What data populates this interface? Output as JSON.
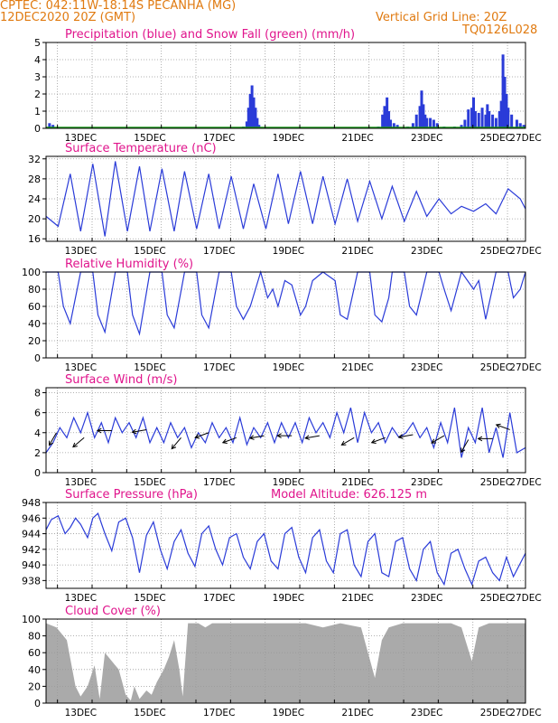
{
  "header": {
    "line1": "CPTEC:   042:11W-18:14S   PECANHA (MG)",
    "line2": "12DEC2020 20Z (GMT)",
    "grid_note": "Vertical Grid Line: 20Z",
    "code": "TQ0126L028"
  },
  "colors": {
    "header": "#e07a10",
    "title": "#e0148c",
    "line": "#2a3bd8",
    "snow": "#1a9a1a",
    "cloud": "#aaaaaa",
    "grid": "#999999"
  },
  "x_ticks": [
    "13DEC",
    "15DEC",
    "17DEC",
    "19DEC",
    "21DEC",
    "23DEC",
    "25DEC",
    "27DEC"
  ],
  "chart_data": [
    {
      "id": "precip",
      "type": "bar",
      "title": "Precipitation (blue) and Snow Fall (green) (mm/h)",
      "ylim": [
        0,
        5
      ],
      "yticks": [
        "0",
        "1",
        "2",
        "3",
        "4",
        "5"
      ],
      "ytick_values": [
        0,
        1,
        2,
        3,
        4,
        5
      ],
      "series": [
        {
          "name": "Precipitation",
          "color": "#2a3bd8",
          "points": [
            [
              0.1,
              0.3
            ],
            [
              0.2,
              0.2
            ],
            [
              1.7,
              0.05
            ],
            [
              2.9,
              0.05
            ],
            [
              3.5,
              0.05
            ],
            [
              4.55,
              0.05
            ],
            [
              5.7,
              0.1
            ],
            [
              5.8,
              0.4
            ],
            [
              5.85,
              1.2
            ],
            [
              5.9,
              2.0
            ],
            [
              5.95,
              2.5
            ],
            [
              6.0,
              1.8
            ],
            [
              6.05,
              1.2
            ],
            [
              6.1,
              0.6
            ],
            [
              6.15,
              0.2
            ],
            [
              6.3,
              0.05
            ],
            [
              7.2,
              0.05
            ],
            [
              8.4,
              0.05
            ],
            [
              9.6,
              0.1
            ],
            [
              9.72,
              0.8
            ],
            [
              9.78,
              1.3
            ],
            [
              9.85,
              1.8
            ],
            [
              9.9,
              1.0
            ],
            [
              9.95,
              0.5
            ],
            [
              10.05,
              0.3
            ],
            [
              10.15,
              0.2
            ],
            [
              10.45,
              0.1
            ],
            [
              10.6,
              0.3
            ],
            [
              10.7,
              0.8
            ],
            [
              10.8,
              1.3
            ],
            [
              10.85,
              2.2
            ],
            [
              10.9,
              1.4
            ],
            [
              10.95,
              0.8
            ],
            [
              11.0,
              0.6
            ],
            [
              11.1,
              0.6
            ],
            [
              11.2,
              0.5
            ],
            [
              11.3,
              0.3
            ],
            [
              11.5,
              0.1
            ],
            [
              11.8,
              0.1
            ],
            [
              12.0,
              0.2
            ],
            [
              12.1,
              0.5
            ],
            [
              12.2,
              1.1
            ],
            [
              12.3,
              1.2
            ],
            [
              12.35,
              1.8
            ],
            [
              12.4,
              1.0
            ],
            [
              12.5,
              0.9
            ],
            [
              12.6,
              1.2
            ],
            [
              12.7,
              0.8
            ],
            [
              12.75,
              1.4
            ],
            [
              12.8,
              1.0
            ],
            [
              12.9,
              0.8
            ],
            [
              13.0,
              0.6
            ],
            [
              13.1,
              1.0
            ],
            [
              13.15,
              1.6
            ],
            [
              13.2,
              4.3
            ],
            [
              13.25,
              3.0
            ],
            [
              13.3,
              2.0
            ],
            [
              13.35,
              1.2
            ],
            [
              13.45,
              0.8
            ],
            [
              13.6,
              0.5
            ],
            [
              13.7,
              0.3
            ],
            [
              13.8,
              0.2
            ]
          ]
        },
        {
          "name": "Snow Fall",
          "color": "#1a9a1a",
          "points": []
        }
      ]
    },
    {
      "id": "temp",
      "type": "line",
      "title": "Surface Temperature (nC)",
      "ylim": [
        15.5,
        32.5
      ],
      "yticks": [
        "16",
        "20",
        "24",
        "28",
        "32"
      ],
      "ytick_values": [
        16,
        20,
        24,
        28,
        32
      ],
      "x": [
        0.0,
        0.35,
        0.7,
        1.0,
        1.35,
        1.7,
        2.0,
        2.35,
        2.7,
        3.0,
        3.35,
        3.7,
        4.0,
        4.35,
        4.7,
        5.0,
        5.35,
        5.7,
        6.0,
        6.35,
        6.7,
        7.0,
        7.35,
        7.7,
        8.0,
        8.35,
        8.7,
        9.0,
        9.35,
        9.7,
        10.0,
        10.35,
        10.7,
        11.0,
        11.35,
        11.7,
        12.0,
        12.35,
        12.7,
        13.0,
        13.35,
        13.7,
        13.85
      ],
      "values": [
        20.5,
        18.5,
        29.0,
        17.5,
        31.0,
        16.5,
        31.5,
        17.5,
        30.5,
        17.5,
        30.0,
        17.5,
        29.5,
        18.0,
        29.0,
        18.0,
        28.5,
        18.0,
        27.0,
        18.0,
        29.0,
        19.0,
        29.5,
        19.0,
        28.5,
        19.0,
        28.0,
        19.5,
        27.5,
        20.0,
        26.5,
        19.5,
        25.5,
        20.5,
        24.0,
        21.0,
        22.5,
        21.5,
        23.0,
        21.0,
        26.0,
        24.0,
        22.0
      ]
    },
    {
      "id": "rh",
      "type": "line",
      "title": "Relative Humidity (%)",
      "ylim": [
        0,
        100
      ],
      "yticks": [
        "0",
        "20",
        "40",
        "60",
        "80",
        "100"
      ],
      "ytick_values": [
        0,
        20,
        40,
        60,
        80,
        100
      ],
      "x": [
        0.0,
        0.1,
        0.35,
        0.5,
        0.7,
        1.0,
        1.35,
        1.5,
        1.7,
        2.0,
        2.35,
        2.5,
        2.7,
        3.0,
        3.35,
        3.5,
        3.7,
        4.0,
        4.35,
        4.5,
        4.7,
        5.0,
        5.35,
        5.5,
        5.7,
        5.9,
        6.2,
        6.4,
        6.55,
        6.7,
        6.9,
        7.1,
        7.35,
        7.5,
        7.7,
        8.0,
        8.35,
        8.5,
        8.7,
        9.0,
        9.35,
        9.5,
        9.7,
        9.9,
        10.0,
        10.35,
        10.5,
        10.7,
        11.0,
        11.35,
        11.5,
        11.7,
        12.0,
        12.35,
        12.5,
        12.7,
        13.0,
        13.35,
        13.5,
        13.7,
        13.85
      ],
      "values": [
        100,
        100,
        100,
        60,
        40,
        100,
        100,
        50,
        30,
        100,
        100,
        50,
        28,
        100,
        100,
        50,
        35,
        100,
        100,
        50,
        35,
        100,
        100,
        60,
        45,
        60,
        100,
        70,
        80,
        60,
        90,
        85,
        50,
        60,
        90,
        100,
        90,
        50,
        45,
        100,
        100,
        50,
        42,
        70,
        100,
        100,
        60,
        50,
        100,
        100,
        80,
        55,
        100,
        80,
        90,
        45,
        100,
        100,
        70,
        80,
        100
      ]
    },
    {
      "id": "wind",
      "type": "line",
      "title": "Surface Wind (m/s)",
      "ylim": [
        0,
        8.5
      ],
      "yticks": [
        "0",
        "2",
        "4",
        "6",
        "8"
      ],
      "ytick_values": [
        0,
        2,
        4,
        6,
        8
      ],
      "x": [
        0.0,
        0.2,
        0.4,
        0.6,
        0.8,
        1.0,
        1.2,
        1.4,
        1.6,
        1.8,
        2.0,
        2.2,
        2.4,
        2.6,
        2.8,
        3.0,
        3.2,
        3.4,
        3.6,
        3.8,
        4.0,
        4.2,
        4.4,
        4.6,
        4.8,
        5.0,
        5.2,
        5.4,
        5.6,
        5.8,
        6.0,
        6.2,
        6.4,
        6.6,
        6.8,
        7.0,
        7.2,
        7.4,
        7.6,
        7.8,
        8.0,
        8.2,
        8.4,
        8.6,
        8.8,
        9.0,
        9.2,
        9.4,
        9.6,
        9.8,
        10.0,
        10.2,
        10.4,
        10.6,
        10.8,
        11.0,
        11.2,
        11.4,
        11.6,
        11.8,
        12.0,
        12.2,
        12.4,
        12.6,
        12.8,
        13.0,
        13.2,
        13.4,
        13.6,
        13.85
      ],
      "values": [
        2.0,
        3.0,
        4.5,
        3.5,
        5.5,
        4.0,
        6.0,
        3.5,
        5.0,
        3.0,
        5.5,
        4.0,
        5.0,
        3.5,
        5.5,
        3.0,
        4.5,
        3.0,
        5.0,
        3.5,
        4.5,
        2.5,
        4.0,
        3.0,
        5.0,
        3.5,
        4.5,
        3.0,
        5.5,
        2.8,
        4.5,
        3.5,
        5.0,
        3.0,
        5.0,
        3.5,
        5.0,
        3.0,
        5.5,
        4.0,
        5.0,
        3.5,
        6.0,
        4.0,
        6.5,
        3.0,
        6.0,
        4.0,
        5.0,
        3.0,
        4.5,
        3.5,
        4.0,
        5.0,
        3.5,
        4.5,
        2.5,
        5.0,
        3.0,
        6.5,
        1.5,
        4.5,
        3.0,
        6.5,
        2.0,
        4.5,
        1.5,
        6.0,
        2.0,
        2.5
      ],
      "barbs": [
        {
          "x": 0.3,
          "y": 4.0,
          "dir": 60
        },
        {
          "x": 1.1,
          "y": 3.5,
          "dir": 40
        },
        {
          "x": 1.9,
          "y": 4.2,
          "dir": 0
        },
        {
          "x": 2.9,
          "y": 4.3,
          "dir": 10
        },
        {
          "x": 3.9,
          "y": 3.5,
          "dir": 50
        },
        {
          "x": 4.7,
          "y": 4.0,
          "dir": 20
        },
        {
          "x": 5.5,
          "y": 3.5,
          "dir": 20
        },
        {
          "x": 6.3,
          "y": 3.7,
          "dir": 10
        },
        {
          "x": 7.1,
          "y": 3.7,
          "dir": 0
        },
        {
          "x": 7.9,
          "y": 3.7,
          "dir": 10
        },
        {
          "x": 8.9,
          "y": 3.5,
          "dir": 30
        },
        {
          "x": 9.8,
          "y": 3.5,
          "dir": 20
        },
        {
          "x": 10.6,
          "y": 3.8,
          "dir": 10
        },
        {
          "x": 11.5,
          "y": 3.7,
          "dir": 30
        },
        {
          "x": 12.2,
          "y": 3.3,
          "dir": 60
        },
        {
          "x": 12.9,
          "y": 3.4,
          "dir": 0
        },
        {
          "x": 13.4,
          "y": 4.3,
          "dir": 340
        }
      ]
    },
    {
      "id": "press",
      "type": "line",
      "title": "Surface Pressure (hPa)",
      "annotation": "Model Altitude: 626.125 m",
      "ylim": [
        937,
        948
      ],
      "yticks": [
        "938",
        "940",
        "942",
        "944",
        "946",
        "948"
      ],
      "ytick_values": [
        938,
        940,
        942,
        944,
        946,
        948
      ],
      "x": [
        0.0,
        0.15,
        0.35,
        0.55,
        0.7,
        0.85,
        1.0,
        1.2,
        1.35,
        1.5,
        1.7,
        1.9,
        2.1,
        2.3,
        2.5,
        2.7,
        2.9,
        3.1,
        3.3,
        3.5,
        3.7,
        3.9,
        4.1,
        4.3,
        4.5,
        4.7,
        4.9,
        5.1,
        5.3,
        5.5,
        5.7,
        5.9,
        6.1,
        6.3,
        6.5,
        6.7,
        6.9,
        7.1,
        7.3,
        7.5,
        7.7,
        7.9,
        8.1,
        8.3,
        8.5,
        8.7,
        8.9,
        9.1,
        9.3,
        9.5,
        9.7,
        9.9,
        10.1,
        10.3,
        10.5,
        10.7,
        10.9,
        11.1,
        11.3,
        11.5,
        11.7,
        11.9,
        12.1,
        12.3,
        12.5,
        12.7,
        12.9,
        13.1,
        13.3,
        13.5,
        13.85
      ],
      "values": [
        944.5,
        945.8,
        946.3,
        944.0,
        944.8,
        946.0,
        945.2,
        943.5,
        946.0,
        946.6,
        944.0,
        941.8,
        945.5,
        946.0,
        943.5,
        939.0,
        943.8,
        945.5,
        942.0,
        939.5,
        943.0,
        944.5,
        941.5,
        939.8,
        944.0,
        945.0,
        942.0,
        940.0,
        943.5,
        944.0,
        941.0,
        939.5,
        943.0,
        944.0,
        940.5,
        939.5,
        944.0,
        944.8,
        941.0,
        939.0,
        943.5,
        944.5,
        940.5,
        939.0,
        944.0,
        944.5,
        940.0,
        938.5,
        943.0,
        944.0,
        939.0,
        938.5,
        943.0,
        943.5,
        939.5,
        938.0,
        942.0,
        943.0,
        939.0,
        937.5,
        941.5,
        942.0,
        939.5,
        937.5,
        940.5,
        941.0,
        939.0,
        938.0,
        941.0,
        938.5,
        941.5
      ]
    },
    {
      "id": "cloud",
      "type": "bar",
      "title": "Cloud Cover (%)",
      "ylim": [
        0,
        100
      ],
      "yticks": [
        "0",
        "20",
        "40",
        "60",
        "80",
        "100"
      ],
      "ytick_values": [
        0,
        20,
        40,
        60,
        80,
        100
      ],
      "profile": [
        [
          0.0,
          95
        ],
        [
          0.3,
          90
        ],
        [
          0.6,
          75
        ],
        [
          0.85,
          20
        ],
        [
          1.0,
          8
        ],
        [
          1.2,
          20
        ],
        [
          1.4,
          45
        ],
        [
          1.55,
          5
        ],
        [
          1.7,
          60
        ],
        [
          1.9,
          50
        ],
        [
          2.1,
          40
        ],
        [
          2.3,
          10
        ],
        [
          2.45,
          3
        ],
        [
          2.55,
          20
        ],
        [
          2.7,
          5
        ],
        [
          2.9,
          15
        ],
        [
          3.05,
          10
        ],
        [
          3.2,
          25
        ],
        [
          3.4,
          40
        ],
        [
          3.55,
          55
        ],
        [
          3.7,
          75
        ],
        [
          3.85,
          40
        ],
        [
          3.95,
          8
        ],
        [
          4.1,
          95
        ],
        [
          4.4,
          95
        ],
        [
          4.6,
          90
        ],
        [
          4.8,
          95
        ],
        [
          5.5,
          95
        ],
        [
          6.5,
          95
        ],
        [
          7.5,
          95
        ],
        [
          8.0,
          90
        ],
        [
          8.5,
          95
        ],
        [
          9.1,
          90
        ],
        [
          9.5,
          30
        ],
        [
          9.7,
          75
        ],
        [
          9.9,
          90
        ],
        [
          10.3,
          95
        ],
        [
          11.0,
          95
        ],
        [
          11.7,
          95
        ],
        [
          12.0,
          90
        ],
        [
          12.3,
          50
        ],
        [
          12.5,
          90
        ],
        [
          12.8,
          95
        ],
        [
          13.5,
          95
        ],
        [
          13.85,
          95
        ]
      ]
    }
  ]
}
